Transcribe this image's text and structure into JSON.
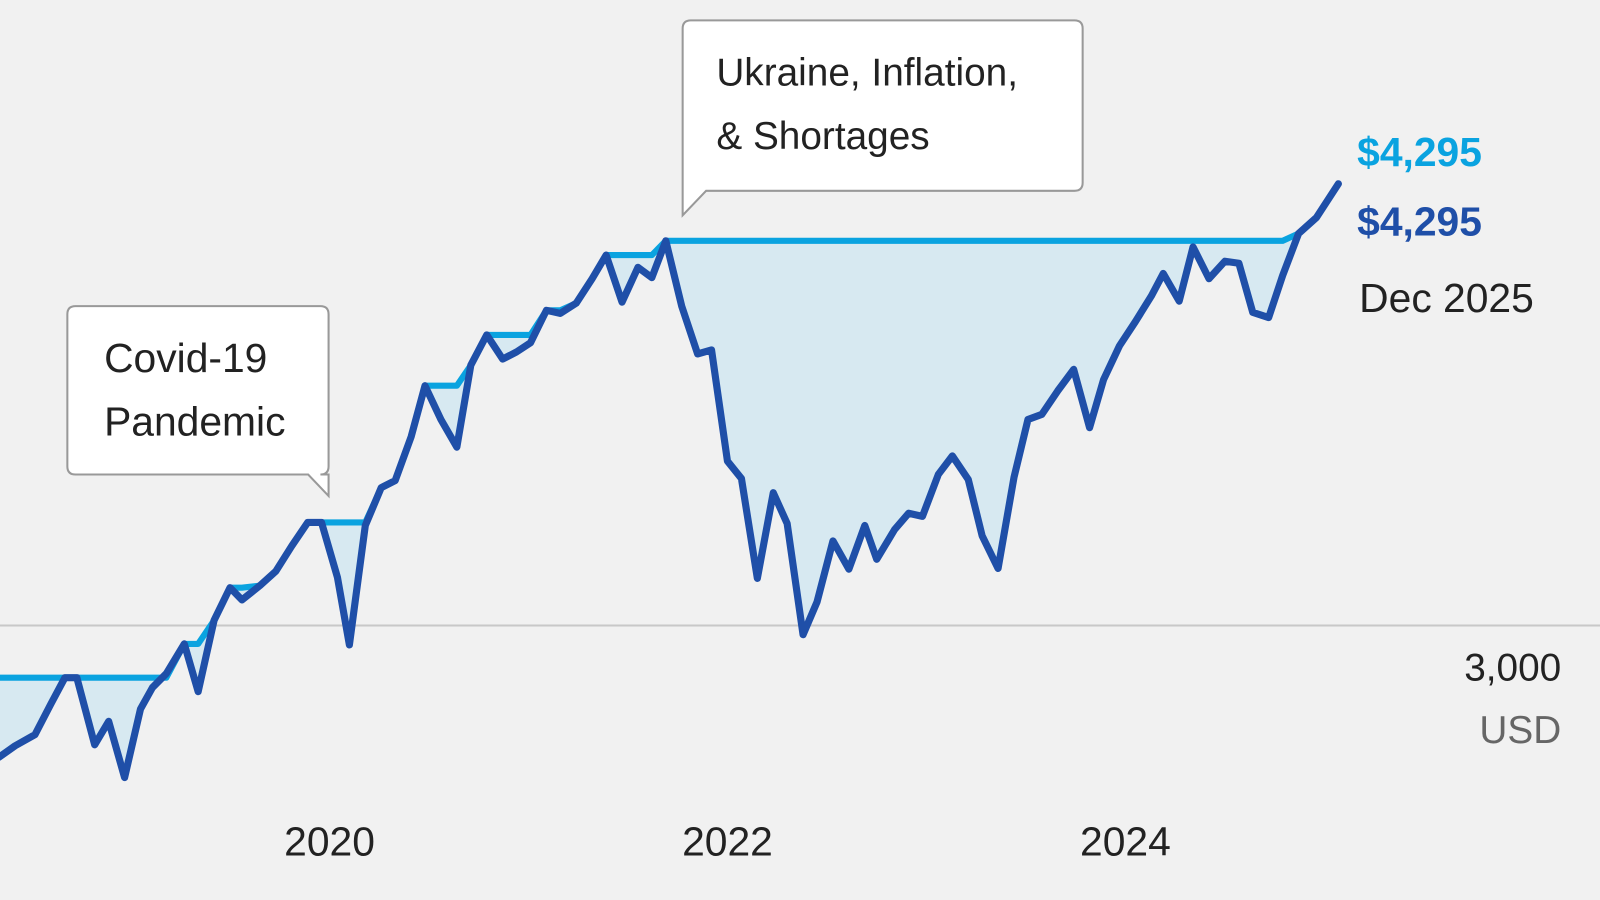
{
  "chart_data": {
    "type": "line",
    "x": [
      2018.34,
      2018.42,
      2018.52,
      2018.6,
      2018.67,
      2018.73,
      2018.82,
      2018.89,
      2018.97,
      2019.05,
      2019.11,
      2019.18,
      2019.27,
      2019.34,
      2019.42,
      2019.5,
      2019.56,
      2019.65,
      2019.73,
      2019.81,
      2019.89,
      2019.96,
      2020.04,
      2020.1,
      2020.18,
      2020.26,
      2020.33,
      2020.41,
      2020.48,
      2020.56,
      2020.64,
      2020.71,
      2020.79,
      2020.87,
      2020.94,
      2021.01,
      2021.09,
      2021.16,
      2021.24,
      2021.32,
      2021.39,
      2021.47,
      2021.55,
      2021.62,
      2021.69,
      2021.77,
      2021.85,
      2021.92,
      2022.0,
      2022.07,
      2022.15,
      2022.23,
      2022.3,
      2022.38,
      2022.45,
      2022.53,
      2022.61,
      2022.69,
      2022.75,
      2022.84,
      2022.91,
      2022.98,
      2023.06,
      2023.13,
      2023.21,
      2023.28,
      2023.36,
      2023.44,
      2023.51,
      2023.58,
      2023.66,
      2023.74,
      2023.82,
      2023.89,
      2023.97,
      2024.05,
      2024.13,
      2024.19,
      2024.27,
      2024.34,
      2024.42,
      2024.5,
      2024.57,
      2024.64,
      2024.72,
      2024.79,
      2024.87,
      2024.96,
      2025.07
    ],
    "series": [
      {
        "color": "#1f4fa8",
        "end_label": "$4,295",
        "values": [
          2614,
          2647,
          2680,
          2770,
          2847,
          2847,
          2650,
          2719,
          2554,
          2755,
          2818,
          2859,
          2946,
          2806,
          3015,
          3111,
          3075,
          3117,
          3159,
          3233,
          3302,
          3302,
          3141,
          2943,
          3293,
          3404,
          3425,
          3553,
          3703,
          3604,
          3523,
          3763,
          3852,
          3781,
          3802,
          3829,
          3924,
          3915,
          3945,
          4017,
          4086,
          3948,
          4050,
          4020,
          4128,
          3936,
          3796,
          3808,
          3482,
          3431,
          3138,
          3389,
          3299,
          2973,
          3069,
          3248,
          3165,
          3293,
          3194,
          3281,
          3329,
          3320,
          3443,
          3497,
          3428,
          3263,
          3167,
          3434,
          3604,
          3619,
          3688,
          3751,
          3580,
          3721,
          3820,
          3891,
          3966,
          4032,
          3951,
          4110,
          4017,
          4068,
          4062,
          3918,
          3903,
          4026,
          4149,
          4196,
          4295
        ]
      },
      {
        "color": "#0aa3e0",
        "end_label": "$4,295",
        "values": [
          2847,
          2847,
          2847,
          2847,
          2847,
          2847,
          2847,
          2847,
          2847,
          2847,
          2847,
          2847,
          2946,
          2946,
          3015,
          3111,
          3111,
          3117,
          3159,
          3233,
          3302,
          3302,
          3302,
          3302,
          3302,
          3404,
          3425,
          3553,
          3703,
          3703,
          3703,
          3763,
          3852,
          3852,
          3852,
          3852,
          3924,
          3924,
          3945,
          4017,
          4086,
          4086,
          4086,
          4086,
          4128,
          4128,
          4128,
          4128,
          4128,
          4128,
          4128,
          4128,
          4128,
          4128,
          4128,
          4128,
          4128,
          4128,
          4128,
          4128,
          4128,
          4128,
          4128,
          4128,
          4128,
          4128,
          4128,
          4128,
          4128,
          4128,
          4128,
          4128,
          4128,
          4128,
          4128,
          4128,
          4128,
          4128,
          4128,
          4128,
          4128,
          4128,
          4128,
          4128,
          4128,
          4128,
          4149,
          4196,
          4295
        ]
      }
    ],
    "fill_color": "#d7e9f1",
    "date_label": "Dec 2025",
    "unit_label": "USD",
    "xlim": [
      2018.344,
      2026.385
    ],
    "ylim": [
      2195,
      4834
    ],
    "xticks": [
      2020,
      2022,
      2024
    ],
    "yticks": [
      {
        "value": 3000,
        "label": "3,000"
      }
    ],
    "grid": true,
    "annotations": [
      {
        "text": [
          "Covid-19",
          "Pandemic"
        ]
      },
      {
        "text": [
          "Ukraine, Inflation,",
          "& Shortages"
        ]
      }
    ]
  }
}
